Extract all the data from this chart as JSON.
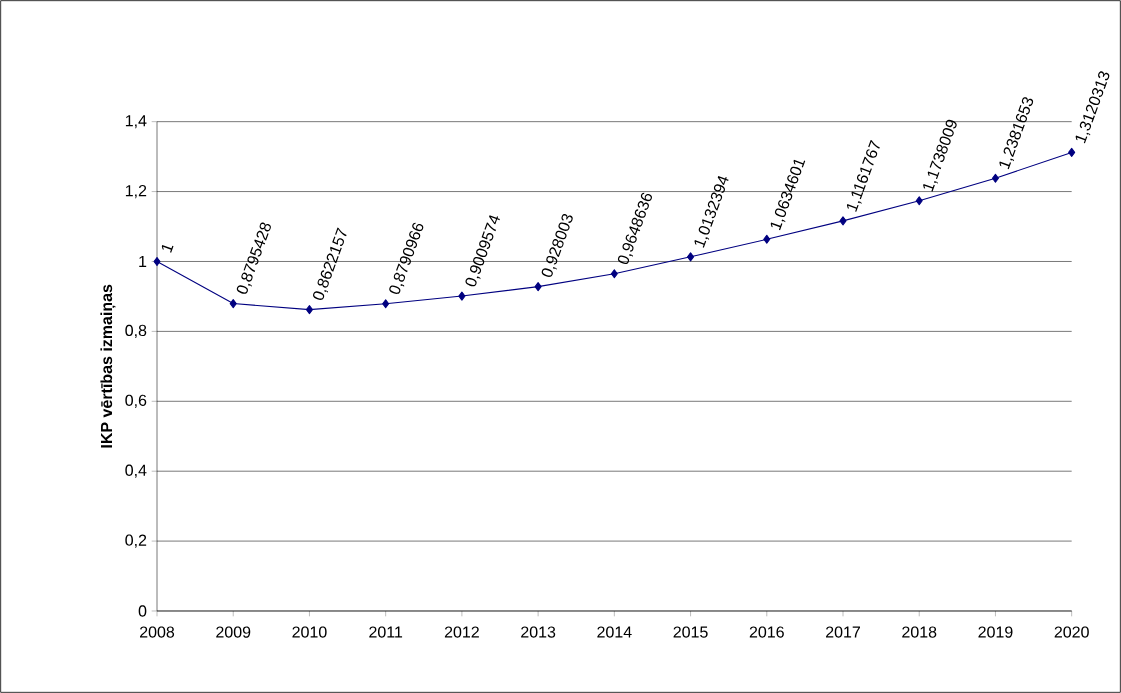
{
  "chart_data": {
    "type": "line",
    "ylabel": "IKP vērtības izmaiņas",
    "categories": [
      "2008",
      "2009",
      "2010",
      "2011",
      "2012",
      "2013",
      "2014",
      "2015",
      "2016",
      "2017",
      "2018",
      "2019",
      "2020"
    ],
    "series": [
      {
        "color": "#000080",
        "values": [
          1,
          0.8795428,
          0.8622157,
          0.8790966,
          0.9009574,
          0.928003,
          0.9648636,
          1.0132394,
          1.0634601,
          1.1161767,
          1.1738009,
          1.2381653,
          1.3120313
        ],
        "value_labels": [
          "1",
          "0,8795428",
          "0,8622157",
          "0,8790966",
          "0,9009574",
          "0,928003",
          "0,9648636",
          "1,0132394",
          "1,0634601",
          "1,1161767",
          "1,1738009",
          "1,2381653",
          "1,3120313"
        ]
      }
    ],
    "ylim": [
      0,
      1.4
    ],
    "yticks": [
      0,
      {
        "value": 0.2,
        "label": "0,2"
      },
      {
        "value": 0.4,
        "label": "0,4"
      },
      {
        "value": 0.6,
        "label": "0,6"
      },
      {
        "value": 0.8,
        "label": "0,8"
      },
      1,
      {
        "value": 1.2,
        "label": "1,2"
      },
      {
        "value": 1.4,
        "label": "1,4"
      }
    ],
    "grid": "y",
    "marker": "diamond",
    "line_style": "solid"
  }
}
